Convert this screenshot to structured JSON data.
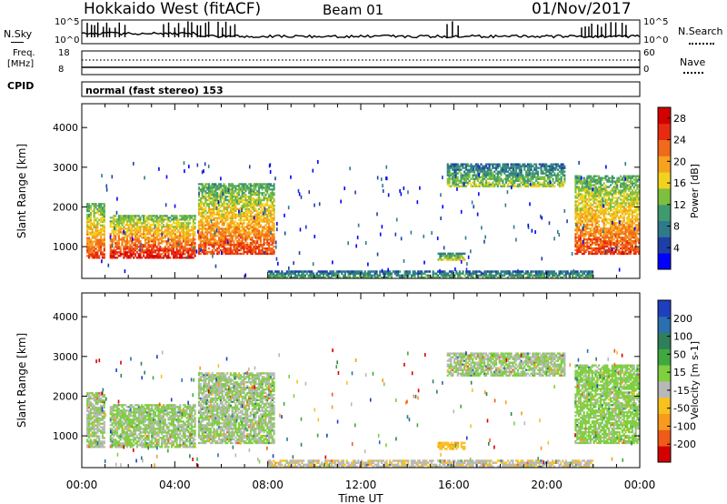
{
  "header": {
    "station": "Hokkaido West (fitACF)",
    "beam": "Beam 01",
    "date": "01/Nov/2017"
  },
  "top_panels": {
    "nsky_label": "N.Sky",
    "nsearch_label": "N.Search",
    "nsky_ticks": [
      "10^5",
      "10^0"
    ],
    "nsearch_ticks": [
      "10^5",
      "10^0"
    ],
    "freq_label": "Freq.",
    "freq_unit": "[MHz]",
    "freq_ticks": [
      "18",
      "8"
    ],
    "nave_label": "Nave",
    "nave_ticks": [
      "60",
      "0"
    ],
    "cpid_label": "CPID",
    "cpid_text": "normal (fast stereo) 153"
  },
  "colors": {
    "power_scale": [
      "#0000ff",
      "#1f3fa8",
      "#2f7a8a",
      "#3f9a6f",
      "#7fbf3f",
      "#f2d21f",
      "#f7a21f",
      "#f06a1a",
      "#e82a12",
      "#d40000"
    ],
    "velocity_scale": [
      "#1f3fbf",
      "#2a6fb0",
      "#2f7f5a",
      "#3fa83f",
      "#7fcf3f",
      "#b8b8b8",
      "#f7c21f",
      "#f79a1f",
      "#f05a1a",
      "#d40000"
    ]
  },
  "chart_data": [
    {
      "type": "heatmap",
      "panel": "power",
      "xlabel": "Time UT",
      "ylabel": "Slant Range [km]",
      "x_ticks": [
        "00:00",
        "04:00",
        "08:00",
        "12:00",
        "16:00",
        "20:00",
        "00:00"
      ],
      "y_ticks": [
        1000,
        2000,
        3000,
        4000
      ],
      "ylim": [
        200,
        4600
      ],
      "colorbar": {
        "label": "Power [dB]",
        "ticks": [
          4,
          8,
          12,
          16,
          20,
          24,
          28
        ],
        "range": [
          0,
          30
        ]
      },
      "regions": [
        {
          "t": [
            0.2,
            1.0
          ],
          "r": [
            700,
            2100
          ],
          "level": 20
        },
        {
          "t": [
            1.2,
            4.9
          ],
          "r": [
            700,
            1800
          ],
          "level": 22
        },
        {
          "t": [
            5.0,
            8.3
          ],
          "r": [
            800,
            2600
          ],
          "level": 20
        },
        {
          "t": [
            8.0,
            22.0
          ],
          "r": [
            200,
            400
          ],
          "level": 10
        },
        {
          "t": [
            15.7,
            20.8
          ],
          "r": [
            2500,
            3100
          ],
          "level": 12
        },
        {
          "t": [
            15.3,
            16.5
          ],
          "r": [
            650,
            850
          ],
          "level": 14
        },
        {
          "t": [
            21.2,
            24.0
          ],
          "r": [
            800,
            2800
          ],
          "level": 20
        }
      ]
    },
    {
      "type": "heatmap",
      "panel": "velocity",
      "xlabel": "Time UT",
      "ylabel": "Slant Range [km]",
      "x_ticks": [
        "00:00",
        "04:00",
        "08:00",
        "12:00",
        "16:00",
        "20:00",
        "00:00"
      ],
      "y_ticks": [
        1000,
        2000,
        3000,
        4000
      ],
      "ylim": [
        200,
        4600
      ],
      "colorbar": {
        "label": "Velocity [m s-1]",
        "ticks": [
          200,
          100,
          50,
          15,
          -15,
          -50,
          -100,
          -200
        ],
        "range": [
          -250,
          250
        ]
      },
      "regions": [
        {
          "t": [
            0.2,
            1.0
          ],
          "r": [
            700,
            2100
          ],
          "value": 0
        },
        {
          "t": [
            1.2,
            4.9
          ],
          "r": [
            700,
            1800
          ],
          "value": 5
        },
        {
          "t": [
            5.0,
            8.3
          ],
          "r": [
            800,
            2600
          ],
          "value": 0
        },
        {
          "t": [
            8.0,
            22.0
          ],
          "r": [
            200,
            400
          ],
          "value": -40
        },
        {
          "t": [
            15.7,
            20.8
          ],
          "r": [
            2500,
            3100
          ],
          "value": 0
        },
        {
          "t": [
            15.3,
            16.5
          ],
          "r": [
            650,
            850
          ],
          "value": -80
        },
        {
          "t": [
            21.2,
            24.0
          ],
          "r": [
            800,
            2800
          ],
          "value": 20
        }
      ]
    }
  ]
}
